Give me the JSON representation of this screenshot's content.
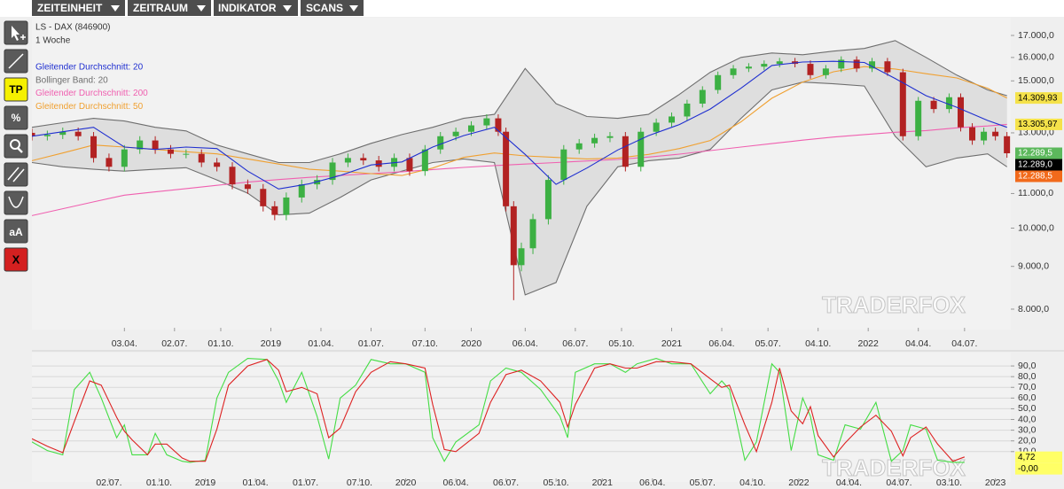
{
  "toolbar": {
    "menus": [
      "ZEITEINHEIT",
      "ZEITRAUM",
      "INDIKATOR",
      "SCANS"
    ],
    "tools": {
      "tp": "TP",
      "percent": "%",
      "text": "aA",
      "delete": "X"
    }
  },
  "watermark": "TRADERFOX",
  "chart_data": [
    {
      "type": "candlestick",
      "title": "LS - DAX (846900)",
      "subtitle": "1 Woche",
      "log_y": true,
      "up_color": "#3cb043",
      "down_color": "#b22222",
      "xlim": [
        0,
        254
      ],
      "ylim": [
        7600,
        17850
      ],
      "xticks": [
        {
          "value": 24,
          "label": "03.04."
        },
        {
          "value": 37,
          "label": "02.07."
        },
        {
          "value": 49,
          "label": "01.10."
        },
        {
          "value": 62,
          "label": "2019"
        },
        {
          "value": 75,
          "label": "01.04."
        },
        {
          "value": 88,
          "label": "01.07."
        },
        {
          "value": 102,
          "label": "07.10."
        },
        {
          "value": 114,
          "label": "2020"
        },
        {
          "value": 128,
          "label": "06.04."
        },
        {
          "value": 141,
          "label": "06.07."
        },
        {
          "value": 153,
          "label": "05.10."
        },
        {
          "value": 166,
          "label": "2021"
        },
        {
          "value": 179,
          "label": "06.04."
        },
        {
          "value": 191,
          "label": "05.07."
        },
        {
          "value": 204,
          "label": "04.10."
        },
        {
          "value": 217,
          "label": "2022"
        },
        {
          "value": 230,
          "label": "04.04."
        },
        {
          "value": 242,
          "label": "04.07."
        }
      ],
      "yticks": [
        {
          "value": 17000,
          "label": "17.000,0"
        },
        {
          "value": 16000,
          "label": "16.000,0"
        },
        {
          "value": 15000,
          "label": "15.000,0"
        },
        {
          "value": 13000,
          "label": "13.000,0"
        },
        {
          "value": 11000,
          "label": "11.000,0"
        },
        {
          "value": 10000,
          "label": "10.000,0"
        },
        {
          "value": 9000,
          "label": "9.000,0"
        },
        {
          "value": 8000,
          "label": "8.000,0"
        }
      ],
      "x": [
        0,
        4,
        8,
        12,
        16,
        20,
        24,
        28,
        32,
        36,
        40,
        44,
        48,
        52,
        56,
        60,
        63,
        66,
        70,
        74,
        78,
        82,
        86,
        90,
        94,
        98,
        102,
        106,
        110,
        114,
        118,
        121,
        123,
        125,
        127,
        130,
        134,
        138,
        142,
        146,
        150,
        154,
        158,
        162,
        166,
        170,
        174,
        178,
        182,
        186,
        190,
        194,
        198,
        202,
        206,
        210,
        214,
        218,
        222,
        226,
        230,
        234,
        238,
        241,
        244,
        247,
        250,
        253
      ],
      "open": [
        13000,
        12880,
        12930,
        13040,
        12880,
        12130,
        11840,
        12420,
        12730,
        12420,
        12270,
        12270,
        11980,
        11840,
        11280,
        11140,
        10620,
        10370,
        10880,
        11280,
        11420,
        11980,
        12130,
        12050,
        11840,
        12130,
        11700,
        12420,
        12880,
        13040,
        13270,
        13530,
        13040,
        10620,
        9030,
        9460,
        10250,
        11420,
        12420,
        12630,
        12820,
        12880,
        11840,
        13040,
        13370,
        13600,
        14090,
        14630,
        15240,
        15520,
        15600,
        15720,
        15830,
        15720,
        15240,
        15520,
        15900,
        15520,
        15830,
        15360,
        12880,
        14200,
        13880,
        14340,
        13200,
        12730,
        13040,
        12880
      ],
      "high": [
        13150,
        13080,
        13190,
        13190,
        13030,
        12280,
        12570,
        12880,
        12880,
        12570,
        12420,
        12420,
        12130,
        11990,
        11430,
        11290,
        10770,
        11030,
        11430,
        11570,
        12130,
        12280,
        12280,
        12200,
        12280,
        12280,
        12570,
        13030,
        13190,
        13420,
        13680,
        13680,
        13190,
        10770,
        9610,
        10400,
        11570,
        12570,
        12780,
        12970,
        13030,
        13030,
        13190,
        13520,
        13750,
        14240,
        14780,
        15390,
        15670,
        15750,
        15870,
        15980,
        15980,
        15870,
        15670,
        16050,
        16050,
        15980,
        15980,
        15510,
        14350,
        14350,
        14490,
        14490,
        13350,
        13190,
        13190,
        13030
      ],
      "low": [
        12730,
        12730,
        12780,
        12730,
        11980,
        11690,
        11690,
        12270,
        12270,
        12120,
        12120,
        11830,
        11690,
        11130,
        10990,
        10470,
        10220,
        10220,
        10730,
        11130,
        11270,
        11830,
        11900,
        11690,
        11690,
        11550,
        11550,
        12270,
        12730,
        12890,
        13120,
        12890,
        10470,
        8200,
        8880,
        9310,
        10100,
        11270,
        12270,
        12480,
        12670,
        11690,
        11690,
        12890,
        13220,
        13450,
        13940,
        14480,
        15090,
        15370,
        15450,
        15570,
        15570,
        15090,
        15090,
        15370,
        15370,
        15370,
        15210,
        12730,
        12730,
        13730,
        13730,
        13050,
        12580,
        12580,
        12730,
        12139
      ],
      "close": [
        12880,
        12930,
        13040,
        12880,
        12130,
        11840,
        12420,
        12730,
        12420,
        12270,
        12270,
        11980,
        11840,
        11280,
        11140,
        10620,
        10370,
        10880,
        11280,
        11420,
        11980,
        12130,
        12050,
        11840,
        12130,
        11700,
        12420,
        12880,
        13040,
        13270,
        13530,
        13040,
        10620,
        9030,
        9460,
        10250,
        11420,
        12420,
        12630,
        12820,
        12880,
        11840,
        13040,
        13370,
        13600,
        14090,
        14630,
        15240,
        15520,
        15600,
        15720,
        15830,
        15720,
        15240,
        15520,
        15900,
        15520,
        15830,
        15360,
        12880,
        14200,
        13880,
        14340,
        13200,
        12730,
        13040,
        12880,
        12289
      ],
      "indicator_x": [
        0,
        8,
        16,
        24,
        32,
        40,
        48,
        56,
        64,
        72,
        80,
        88,
        96,
        104,
        112,
        120,
        128,
        136,
        144,
        152,
        160,
        168,
        176,
        184,
        192,
        200,
        208,
        216,
        224,
        232,
        240,
        248,
        253
      ],
      "overlays": [
        {
          "name": "Gleitender Durchschnitt: 20",
          "color": "#1f2fd0",
          "values": [
            12880,
            13040,
            13200,
            12500,
            12420,
            12500,
            12450,
            11700,
            11140,
            11300,
            11560,
            11900,
            12000,
            12500,
            12900,
            13200,
            12250,
            11280,
            11800,
            12400,
            12900,
            13300,
            13880,
            14700,
            15650,
            15800,
            15830,
            15780,
            15100,
            14400,
            13950,
            13450,
            13200
          ]
        },
        {
          "name": "Bollinger Band: 20",
          "color": "#6e6e6e",
          "band_color": "#dedede",
          "upper": [
            13200,
            13370,
            13530,
            13430,
            13200,
            13070,
            12570,
            12270,
            11980,
            11980,
            12270,
            12630,
            12940,
            13200,
            13530,
            13680,
            15520,
            14090,
            13600,
            13530,
            13680,
            14450,
            15360,
            16000,
            16200,
            16120,
            16280,
            16400,
            16760,
            16000,
            15240,
            14630,
            14400
          ],
          "lower": [
            11980,
            11840,
            11760,
            11700,
            11760,
            11810,
            11420,
            11010,
            10370,
            10420,
            10880,
            11420,
            11700,
            11980,
            12100,
            11980,
            8320,
            8610,
            10620,
            11840,
            12040,
            12130,
            12420,
            13530,
            14630,
            14950,
            14880,
            14790,
            12880,
            11840,
            12130,
            12270,
            11840
          ]
        },
        {
          "name": "Gleitender Durchschnitt: 200",
          "color": "#f060b0",
          "values": [
            10350,
            10550,
            10750,
            10950,
            11050,
            11150,
            11250,
            11350,
            11430,
            11500,
            11560,
            11620,
            11680,
            11750,
            11820,
            11880,
            11930,
            11980,
            12030,
            12080,
            12160,
            12260,
            12380,
            12500,
            12620,
            12740,
            12850,
            12940,
            13020,
            13080,
            13180,
            13250,
            13306
          ]
        },
        {
          "name": "Gleitender Durchschnitt: 50",
          "color": "#f0a030",
          "values": [
            12040,
            12300,
            12570,
            12500,
            12420,
            12340,
            12270,
            12100,
            11930,
            11760,
            11700,
            11620,
            11560,
            11800,
            12150,
            12300,
            12200,
            12150,
            12100,
            12130,
            12250,
            12450,
            12730,
            13400,
            14300,
            14950,
            15380,
            15600,
            15500,
            15300,
            15120,
            14700,
            14310
          ]
        }
      ],
      "last_value_labels": [
        {
          "value": 14309.93,
          "label": "14.309,93",
          "color": "#f5e24a",
          "text_color": "#000000"
        },
        {
          "value": 13305.97,
          "label": "13.305,97",
          "color": "#f5e24a",
          "text_color": "#000000"
        },
        {
          "value": 12289.5,
          "label": "12.289,5",
          "color": "#5cb85c",
          "text_color": "#ffffff"
        },
        {
          "value": 12289.0,
          "label": "12.289,0",
          "color": "#000000",
          "text_color": "#ffffff"
        },
        {
          "value": 12288.5,
          "label": "12.288,5",
          "color": "#f26a1b",
          "text_color": "#ffffff"
        }
      ]
    },
    {
      "type": "line",
      "grid": true,
      "xlim": [
        0,
        254
      ],
      "ylim": [
        -15,
        100
      ],
      "xticks": [
        {
          "value": 20,
          "label": "02.07."
        },
        {
          "value": 33,
          "label": "01.10."
        },
        {
          "value": 45,
          "label": "2019"
        },
        {
          "value": 58,
          "label": "01.04."
        },
        {
          "value": 71,
          "label": "01.07."
        },
        {
          "value": 85,
          "label": "07.10."
        },
        {
          "value": 97,
          "label": "2020"
        },
        {
          "value": 110,
          "label": "06.04."
        },
        {
          "value": 123,
          "label": "06.07."
        },
        {
          "value": 136,
          "label": "05.10."
        },
        {
          "value": 148,
          "label": "2021"
        },
        {
          "value": 161,
          "label": "06.04."
        },
        {
          "value": 174,
          "label": "05.07."
        },
        {
          "value": 187,
          "label": "04.10."
        },
        {
          "value": 199,
          "label": "2022"
        },
        {
          "value": 212,
          "label": "04.04."
        },
        {
          "value": 225,
          "label": "04.07."
        },
        {
          "value": 238,
          "label": "03.10."
        },
        {
          "value": 250,
          "label": "2023"
        }
      ],
      "yticks": [
        {
          "value": 90,
          "label": "90,0"
        },
        {
          "value": 80,
          "label": "80,0"
        },
        {
          "value": 70,
          "label": "70,0"
        },
        {
          "value": 60,
          "label": "60,0"
        },
        {
          "value": 50,
          "label": "50,0"
        },
        {
          "value": 40,
          "label": "40,0"
        },
        {
          "value": 30,
          "label": "30,0"
        },
        {
          "value": 20,
          "label": "20,0"
        },
        {
          "value": 10,
          "label": "10,0"
        }
      ],
      "x": [
        0,
        4,
        8,
        11,
        15,
        18,
        22,
        24,
        26,
        30,
        32,
        35,
        39,
        41,
        45,
        48,
        51,
        56,
        61,
        64,
        66,
        70,
        74,
        77,
        80,
        84,
        88,
        93,
        97,
        102,
        104,
        107,
        110,
        116,
        119,
        123,
        127,
        132,
        137,
        139,
        141,
        146,
        150,
        154,
        157,
        162,
        166,
        171,
        176,
        179,
        181,
        185,
        188,
        192,
        194,
        197,
        200,
        202,
        204,
        208,
        211,
        215,
        219,
        223,
        226,
        228,
        232,
        235,
        239,
        242
      ],
      "series": [
        {
          "color": "#44dd44",
          "values": [
            19,
            11,
            7,
            68,
            84,
            60,
            23,
            35,
            7,
            7,
            27,
            7,
            1,
            0,
            2,
            60,
            84,
            97,
            96,
            76,
            56,
            84,
            43,
            3,
            60,
            72,
            96,
            92,
            92,
            84,
            23,
            1,
            19,
            35,
            76,
            88,
            84,
            68,
            43,
            23,
            84,
            92,
            92,
            84,
            92,
            97,
            92,
            92,
            64,
            76,
            68,
            2,
            19,
            92,
            84,
            11,
            60,
            43,
            7,
            2,
            35,
            31,
            56,
            1,
            11,
            35,
            31,
            2,
            0,
            0
          ]
        },
        {
          "color": "#dd2222",
          "values": [
            22,
            15,
            9,
            38,
            76,
            72,
            42,
            29,
            21,
            7,
            17,
            17,
            4,
            1,
            1,
            31,
            72,
            90,
            96,
            86,
            66,
            70,
            64,
            23,
            32,
            66,
            84,
            94,
            92,
            88,
            54,
            12,
            10,
            27,
            56,
            82,
            86,
            76,
            56,
            33,
            54,
            88,
            92,
            88,
            88,
            94,
            94,
            92,
            78,
            70,
            72,
            35,
            10,
            56,
            88,
            48,
            36,
            52,
            25,
            5,
            18,
            33,
            44,
            29,
            6,
            23,
            33,
            17,
            1,
            5
          ]
        }
      ],
      "last_value_labels": [
        {
          "value": 4.72,
          "label": "4,72",
          "color": "#ffff66",
          "text_color": "#000000"
        },
        {
          "value": 0,
          "label": "-0,00",
          "color": "#ffff66",
          "text_color": "#000000"
        }
      ]
    }
  ]
}
